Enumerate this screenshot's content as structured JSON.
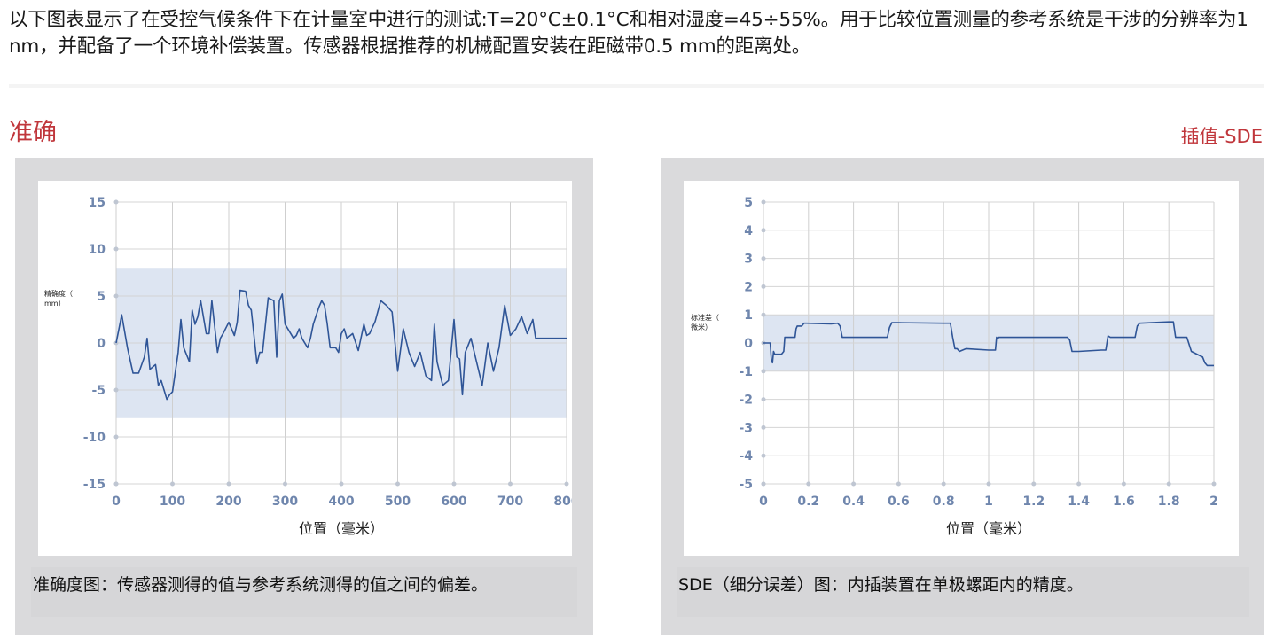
{
  "intro_text": "以下图表显示了在受控气候条件下在计量室中进行的测试:T=20°C±0.1°C和相对湿度=45÷55%。用于比较位置测量的参考系统是干涉的分辨率为1 nm，并配备了一个环境补偿装置。传感器根据推荐的机械配置安装在距磁带0.5 mm的距离处。",
  "left_title": "准确",
  "right_title": "插值-SDE",
  "colors": {
    "accent": "#c0363b",
    "line": "#2f5597",
    "band": "#dde5f2",
    "axis_text": "#6f86ad"
  },
  "chart_data": [
    {
      "type": "line",
      "ylabel": "精确度（mm）",
      "xlabel": "位置（毫米）",
      "xlim": [
        0,
        800
      ],
      "ylim": [
        -15,
        15
      ],
      "xticks": [
        0,
        100,
        200,
        300,
        400,
        500,
        600,
        700,
        800
      ],
      "yticks": [
        15,
        10,
        5,
        0,
        -5,
        -10,
        -15
      ],
      "band": [
        -8,
        8
      ],
      "grid": true,
      "caption": "准确度图：传感器测得的值与参考系统测得的值之间的偏差。",
      "x": [
        0,
        10,
        20,
        30,
        40,
        50,
        55,
        60,
        70,
        75,
        80,
        90,
        95,
        100,
        110,
        115,
        120,
        130,
        135,
        140,
        145,
        150,
        160,
        165,
        170,
        180,
        185,
        190,
        200,
        210,
        215,
        220,
        230,
        235,
        240,
        250,
        255,
        260,
        270,
        280,
        285,
        290,
        295,
        300,
        310,
        315,
        320,
        325,
        330,
        340,
        345,
        350,
        360,
        365,
        370,
        375,
        380,
        390,
        395,
        400,
        405,
        410,
        420,
        430,
        440,
        445,
        450,
        460,
        470,
        480,
        490,
        500,
        510,
        520,
        530,
        540,
        550,
        560,
        565,
        570,
        580,
        590,
        600,
        605,
        610,
        615,
        620,
        630,
        640,
        650,
        660,
        670,
        680,
        690,
        700,
        710,
        720,
        730,
        740,
        745,
        750,
        760,
        770,
        780,
        790,
        800
      ],
      "y": [
        0,
        3,
        -0.5,
        -3.2,
        -3.2,
        -1.5,
        0.5,
        -2.8,
        -2.3,
        -4.5,
        -4,
        -6,
        -5.5,
        -5.2,
        -1,
        2.5,
        -0.5,
        -2,
        3.5,
        2,
        2.8,
        4.5,
        1,
        1,
        4.5,
        -1,
        0.5,
        1,
        2.2,
        0.8,
        2.2,
        5.6,
        5.5,
        4,
        3.5,
        -2.2,
        -1,
        -1,
        4.8,
        4.5,
        -1.5,
        4.5,
        5.2,
        2,
        1,
        0.5,
        0.8,
        1.5,
        0.5,
        -0.5,
        0.5,
        2,
        3.8,
        4.5,
        4,
        2,
        -0.5,
        -0.5,
        -1,
        1,
        1.5,
        0.5,
        1,
        -0.8,
        2,
        0.8,
        1,
        2.3,
        4.5,
        4,
        3.3,
        -3,
        1.5,
        -1,
        -2.5,
        -1,
        -3.5,
        -4,
        2,
        -2,
        -4.5,
        -4,
        2.5,
        -1.5,
        -1.7,
        -5.5,
        -1,
        0.5,
        -2,
        -4.5,
        0,
        -3,
        -0.5,
        4,
        0.8,
        1.5,
        2.8,
        1,
        2.5,
        0.5,
        0.5,
        0.5,
        0.5,
        0.5,
        0.5,
        0.5
      ]
    },
    {
      "type": "line",
      "ylabel": "标准差（微米）",
      "xlabel": "位置（毫米）",
      "xlim": [
        0,
        2
      ],
      "ylim": [
        -5,
        5
      ],
      "xticks": [
        0,
        0.2,
        0.4,
        0.6,
        0.8,
        1,
        1.2,
        1.4,
        1.6,
        1.8,
        2
      ],
      "yticks": [
        5,
        4,
        3,
        2,
        1,
        0,
        -1,
        -2,
        -3,
        -4,
        -5
      ],
      "band": [
        -1,
        1
      ],
      "grid": true,
      "caption": "SDE（细分误差）图：内插装置在单极螺距内的精度。",
      "x": [
        0,
        0.03,
        0.035,
        0.04,
        0.045,
        0.05,
        0.08,
        0.09,
        0.095,
        0.1,
        0.13,
        0.14,
        0.145,
        0.15,
        0.17,
        0.18,
        0.185,
        0.19,
        0.3,
        0.33,
        0.34,
        0.35,
        0.4,
        0.5,
        0.55,
        0.56,
        0.57,
        0.6,
        0.8,
        0.83,
        0.84,
        0.85,
        0.86,
        0.87,
        0.9,
        1,
        1.03,
        1.035,
        1.04,
        1.045,
        1.05,
        1.1,
        1.2,
        1.3,
        1.35,
        1.36,
        1.37,
        1.4,
        1.5,
        1.52,
        1.53,
        1.54,
        1.55,
        1.6,
        1.65,
        1.66,
        1.67,
        1.8,
        1.82,
        1.83,
        1.84,
        1.85,
        1.88,
        1.9,
        1.95,
        1.96,
        1.97,
        2
      ],
      "y": [
        0,
        0,
        -0.6,
        -0.7,
        -0.3,
        -0.4,
        -0.4,
        -0.3,
        0.2,
        0.2,
        0.2,
        0.2,
        0.5,
        0.6,
        0.6,
        0.7,
        0.7,
        0.7,
        0.68,
        0.7,
        0.6,
        0.2,
        0.2,
        0.2,
        0.2,
        0.55,
        0.72,
        0.72,
        0.7,
        0.7,
        0.2,
        -0.2,
        -0.2,
        -0.3,
        -0.2,
        -0.25,
        -0.25,
        0.2,
        0.15,
        0.2,
        0.2,
        0.2,
        0.2,
        0.2,
        0.2,
        0.1,
        -0.3,
        -0.3,
        -0.25,
        -0.25,
        0.25,
        0.2,
        0.2,
        0.2,
        0.2,
        0.6,
        0.7,
        0.75,
        0.75,
        0.2,
        0.2,
        0.2,
        0.2,
        -0.3,
        -0.5,
        -0.7,
        -0.8,
        -0.8
      ]
    }
  ]
}
